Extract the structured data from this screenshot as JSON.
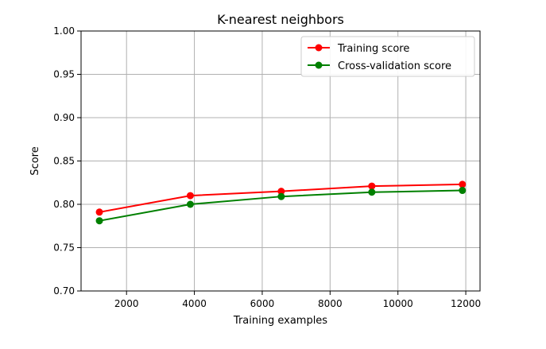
{
  "chart_data": {
    "type": "line",
    "title": "K-nearest neighbors",
    "xlabel": "Training examples",
    "ylabel": "Score",
    "xlim": [
      660,
      12420
    ],
    "ylim": [
      0.7,
      1.0
    ],
    "x_ticks": [
      2000,
      4000,
      6000,
      8000,
      10000,
      12000
    ],
    "y_ticks": [
      0.7,
      0.75,
      0.8,
      0.85,
      0.9,
      0.95,
      1.0
    ],
    "x_tick_labels": [
      "2000",
      "4000",
      "6000",
      "8000",
      "10000",
      "12000"
    ],
    "y_tick_labels": [
      "0.70",
      "0.75",
      "0.80",
      "0.85",
      "0.90",
      "0.95",
      "1.00"
    ],
    "grid": true,
    "legend_position": "top-right",
    "x": [
      1200,
      3880,
      6560,
      9230,
      11900
    ],
    "series": [
      {
        "name": "Training score",
        "color": "#ff0000",
        "values": [
          0.791,
          0.81,
          0.815,
          0.821,
          0.823
        ]
      },
      {
        "name": "Cross-validation score",
        "color": "#008000",
        "values": [
          0.781,
          0.8,
          0.809,
          0.814,
          0.816
        ]
      }
    ]
  }
}
